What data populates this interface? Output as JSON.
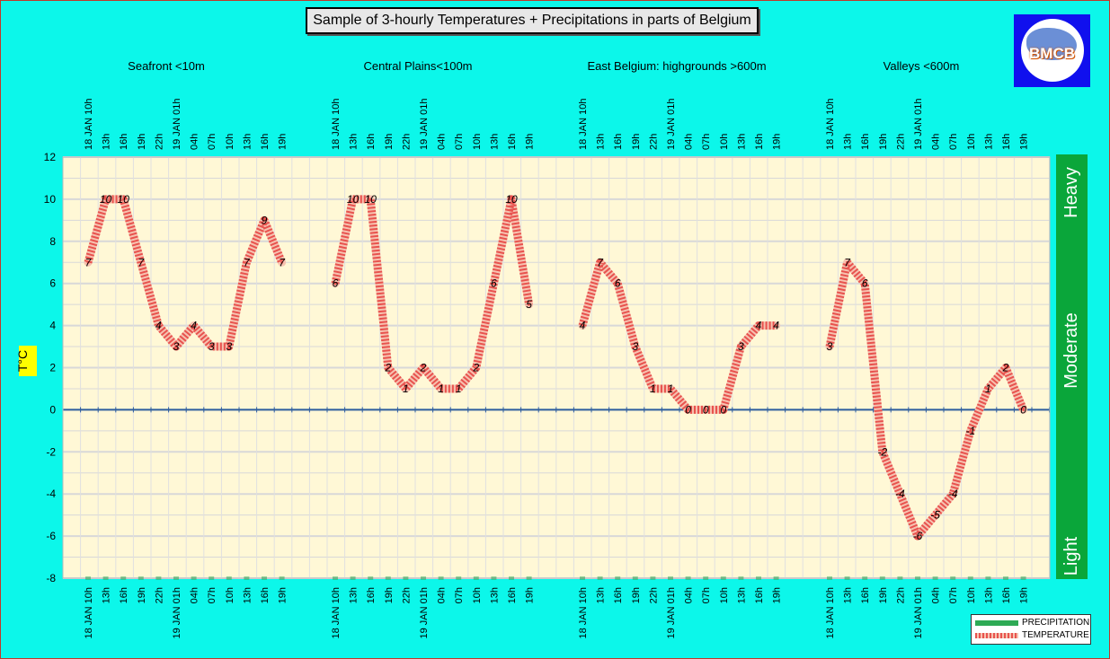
{
  "title": "Sample of 3-hourly Temperatures + Precipitations in parts of Belgium",
  "logo": {
    "text": "BMCB"
  },
  "regions": [
    "Seafront <10m",
    "Central Plains<100m",
    "East Belgium:     highgrounds >600m",
    "Valleys <600m"
  ],
  "y_axis_label": "T°C",
  "intensity": {
    "heavy": "Heavy",
    "moderate": "Moderate",
    "light": "Light"
  },
  "legend": {
    "precipitation": "PRECIPITATION",
    "temperature": "TEMPERATURE"
  },
  "colors": {
    "background": "#0cf7ea",
    "plot": "#fff8d6",
    "temperature": "#e8534e",
    "precipitation": "#2eaa55",
    "zero_line": "#2f5f9e",
    "intensity_bar": "#0aa63a"
  },
  "chart_data": {
    "type": "line",
    "ylim": [
      -8,
      12
    ],
    "yticks": [
      -8,
      -6,
      -4,
      -2,
      0,
      2,
      4,
      6,
      8,
      10,
      12
    ],
    "ylabel": "T°C",
    "grid": true,
    "legend_position": "bottom-right",
    "groups": [
      {
        "region": "Seafront <10m",
        "times": [
          "18 JAN 10h",
          "13h",
          "16h",
          "19h",
          "22h",
          "19 JAN 01h",
          "04h",
          "07h",
          "10h",
          "13h",
          "16h",
          "19h"
        ],
        "temperature": [
          7,
          10,
          10,
          7,
          4,
          3,
          4,
          3,
          3,
          7,
          9,
          7
        ]
      },
      {
        "region": "Central Plains<100m",
        "times": [
          "18 JAN 10h",
          "13h",
          "16h",
          "19h",
          "22h",
          "19 JAN 01h",
          "04h",
          "07h",
          "10h",
          "13h",
          "16h",
          "19h"
        ],
        "temperature": [
          6,
          10,
          10,
          2,
          1,
          2,
          1,
          1,
          2,
          6,
          10,
          5
        ]
      },
      {
        "region": "East Belgium:     highgrounds >600m",
        "times": [
          "18 JAN 10h",
          "13h",
          "16h",
          "19h",
          "22h",
          "19 JAN 01h",
          "04h",
          "07h",
          "10h",
          "13h",
          "16h",
          "19h"
        ],
        "temperature": [
          4,
          7,
          6,
          3,
          1,
          1,
          0,
          0,
          0,
          3,
          4,
          4
        ]
      },
      {
        "region": "Valleys <600m",
        "times": [
          "18 JAN 10h",
          "13h",
          "16h",
          "19h",
          "22h",
          "19 JAN 01h",
          "04h",
          "07h",
          "10h",
          "13h",
          "16h",
          "19h"
        ],
        "temperature": [
          3,
          7,
          6,
          -2,
          -4,
          -6,
          -5,
          -4,
          -1,
          1,
          2,
          0
        ]
      }
    ],
    "series": [
      {
        "name": "PRECIPITATION"
      },
      {
        "name": "TEMPERATURE"
      }
    ]
  }
}
